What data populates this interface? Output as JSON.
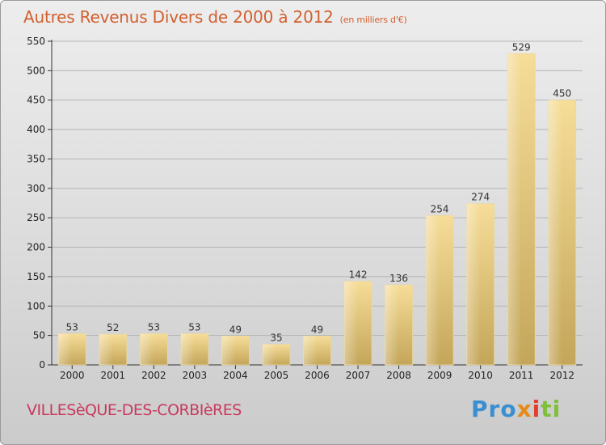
{
  "header": {
    "title": "Autres Revenus Divers de 2000 à 2012",
    "unit": "(en milliers d'€)"
  },
  "footer": {
    "town": "VILLESèQUE-DES-CORBIèRES",
    "brand": "Proxiti"
  },
  "colors": {
    "title": "#d2602f",
    "town": "#c8385e",
    "bar_top": "#f6dd98",
    "bar_bottom": "#c4a65a"
  },
  "chart_data": {
    "type": "bar",
    "categories": [
      "2000",
      "2001",
      "2002",
      "2003",
      "2004",
      "2005",
      "2006",
      "2007",
      "2008",
      "2009",
      "2010",
      "2011",
      "2012"
    ],
    "values": [
      53,
      52,
      53,
      53,
      49,
      35,
      49,
      142,
      136,
      254,
      274,
      529,
      450
    ],
    "title": "Autres Revenus Divers de 2000 à 2012",
    "subtitle": "(en milliers d'€)",
    "xlabel": "",
    "ylabel": "",
    "ylim": [
      0,
      550
    ],
    "yticks": [
      0,
      50,
      100,
      150,
      200,
      250,
      300,
      350,
      400,
      450,
      500,
      550
    ],
    "grid": true,
    "data_labels": true
  }
}
